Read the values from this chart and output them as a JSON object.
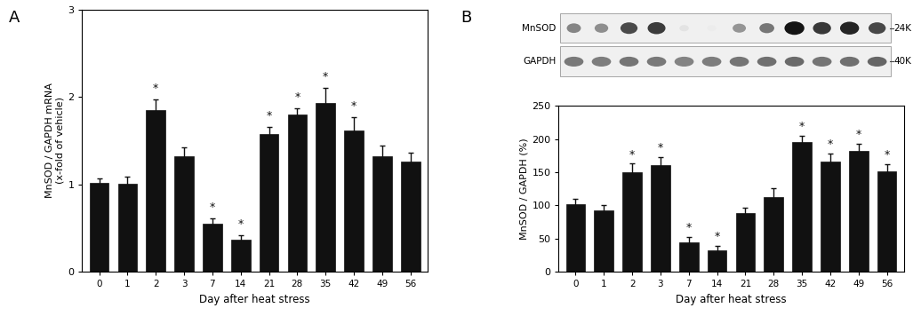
{
  "panel_A": {
    "categories": [
      0,
      1,
      2,
      3,
      7,
      14,
      21,
      28,
      35,
      42,
      49,
      56
    ],
    "values": [
      1.02,
      1.01,
      1.85,
      1.32,
      0.55,
      0.37,
      1.58,
      1.8,
      1.93,
      1.62,
      1.32,
      1.26
    ],
    "errors": [
      0.05,
      0.08,
      0.12,
      0.1,
      0.06,
      0.05,
      0.08,
      0.07,
      0.17,
      0.15,
      0.12,
      0.1
    ],
    "significant": [
      false,
      false,
      true,
      false,
      true,
      true,
      true,
      true,
      true,
      true,
      false,
      false
    ],
    "ylabel": "MnSOD / GAPDH mRNA\n(x-fold of vehicle)",
    "xlabel": "Day after heat stress",
    "ylim": [
      0,
      3
    ],
    "yticks": [
      0,
      1,
      2,
      3
    ],
    "title": "A"
  },
  "panel_B": {
    "categories": [
      0,
      1,
      2,
      3,
      7,
      14,
      21,
      28,
      35,
      42,
      49,
      56
    ],
    "values": [
      102,
      93,
      150,
      161,
      45,
      32,
      88,
      113,
      195,
      166,
      182,
      152
    ],
    "errors": [
      8,
      7,
      13,
      12,
      8,
      7,
      9,
      13,
      10,
      12,
      11,
      10
    ],
    "significant": [
      false,
      false,
      true,
      true,
      true,
      true,
      false,
      false,
      true,
      true,
      true,
      true
    ],
    "ylabel": "MnSOD / GAPDH (%)",
    "xlabel": "Day after heat stress",
    "ylim": [
      0,
      250
    ],
    "yticks": [
      0,
      50,
      100,
      150,
      200,
      250
    ],
    "title": "B",
    "blot_labels": [
      "MnSOD",
      "GAPDH"
    ],
    "blot_markers": [
      "24K",
      "40K"
    ],
    "mnsod_intensity": [
      0.52,
      0.48,
      0.77,
      0.83,
      0.12,
      0.08,
      0.45,
      0.58,
      1.0,
      0.85,
      0.93,
      0.78
    ],
    "gapdh_intensity": [
      0.7,
      0.68,
      0.72,
      0.7,
      0.65,
      0.68,
      0.72,
      0.75,
      0.78,
      0.72,
      0.75,
      0.8
    ]
  },
  "bar_color": "#111111",
  "error_color": "#111111",
  "star_color": "#111111",
  "background_color": "#ffffff",
  "figure_width": 10.27,
  "figure_height": 3.56
}
